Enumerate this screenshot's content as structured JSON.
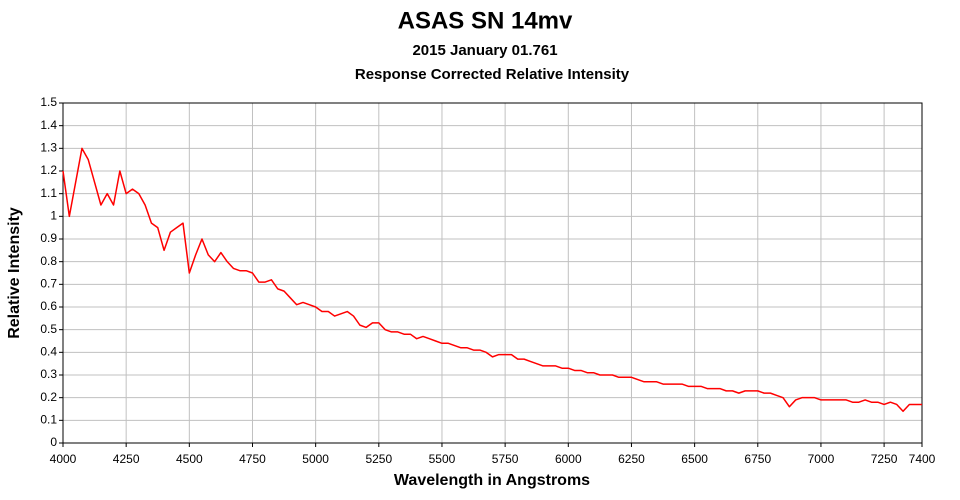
{
  "chart_data": {
    "type": "line",
    "title": "ASAS SN 14mv",
    "subtitles": [
      "2015 January 01.761",
      "Response Corrected Relative Intensity"
    ],
    "x_label": "Wavelength in Angstroms",
    "y_label": "Relative Intensity",
    "x": [
      4000,
      4025,
      4050,
      4075,
      4100,
      4125,
      4150,
      4175,
      4200,
      4225,
      4250,
      4275,
      4300,
      4325,
      4350,
      4375,
      4400,
      4425,
      4450,
      4475,
      4500,
      4525,
      4550,
      4575,
      4600,
      4625,
      4650,
      4675,
      4700,
      4725,
      4750,
      4775,
      4800,
      4825,
      4850,
      4875,
      4900,
      4925,
      4950,
      4975,
      5000,
      5025,
      5050,
      5075,
      5100,
      5125,
      5150,
      5175,
      5200,
      5225,
      5250,
      5275,
      5300,
      5325,
      5350,
      5375,
      5400,
      5425,
      5450,
      5475,
      5500,
      5525,
      5550,
      5575,
      5600,
      5625,
      5650,
      5675,
      5700,
      5725,
      5750,
      5775,
      5800,
      5825,
      5850,
      5875,
      5900,
      5925,
      5950,
      5975,
      6000,
      6025,
      6050,
      6075,
      6100,
      6125,
      6150,
      6175,
      6200,
      6225,
      6250,
      6275,
      6300,
      6325,
      6350,
      6375,
      6400,
      6425,
      6450,
      6475,
      6500,
      6525,
      6550,
      6575,
      6600,
      6625,
      6650,
      6675,
      6700,
      6725,
      6750,
      6775,
      6800,
      6825,
      6850,
      6875,
      6900,
      6925,
      6950,
      6975,
      7000,
      7025,
      7050,
      7075,
      7100,
      7125,
      7150,
      7175,
      7200,
      7225,
      7250,
      7275,
      7300,
      7325,
      7350,
      7375,
      7400
    ],
    "series": [
      {
        "name": "ASAS SN 14mv",
        "color": "#ff0000",
        "values": [
          1.2,
          1.0,
          1.15,
          1.3,
          1.25,
          1.15,
          1.05,
          1.1,
          1.05,
          1.2,
          1.1,
          1.12,
          1.1,
          1.05,
          0.97,
          0.95,
          0.85,
          0.93,
          0.95,
          0.97,
          0.75,
          0.83,
          0.9,
          0.83,
          0.8,
          0.84,
          0.8,
          0.77,
          0.76,
          0.76,
          0.75,
          0.71,
          0.71,
          0.72,
          0.68,
          0.67,
          0.64,
          0.61,
          0.62,
          0.61,
          0.6,
          0.58,
          0.58,
          0.56,
          0.57,
          0.58,
          0.56,
          0.52,
          0.51,
          0.53,
          0.53,
          0.5,
          0.49,
          0.49,
          0.48,
          0.48,
          0.46,
          0.47,
          0.46,
          0.45,
          0.44,
          0.44,
          0.43,
          0.42,
          0.42,
          0.41,
          0.41,
          0.4,
          0.38,
          0.39,
          0.39,
          0.39,
          0.37,
          0.37,
          0.36,
          0.35,
          0.34,
          0.34,
          0.34,
          0.33,
          0.33,
          0.32,
          0.32,
          0.31,
          0.31,
          0.3,
          0.3,
          0.3,
          0.29,
          0.29,
          0.29,
          0.28,
          0.27,
          0.27,
          0.27,
          0.26,
          0.26,
          0.26,
          0.26,
          0.25,
          0.25,
          0.25,
          0.24,
          0.24,
          0.24,
          0.23,
          0.23,
          0.22,
          0.23,
          0.23,
          0.23,
          0.22,
          0.22,
          0.21,
          0.2,
          0.16,
          0.19,
          0.2,
          0.2,
          0.2,
          0.19,
          0.19,
          0.19,
          0.19,
          0.19,
          0.18,
          0.18,
          0.19,
          0.18,
          0.18,
          0.17,
          0.18,
          0.17,
          0.14,
          0.17,
          0.17,
          0.17
        ]
      }
    ],
    "xlim": [
      4000,
      7400
    ],
    "xticks": [
      4000,
      4250,
      4500,
      4750,
      5000,
      5250,
      5500,
      5750,
      6000,
      6250,
      6500,
      6750,
      7000,
      7250,
      7400
    ],
    "ylim": [
      0,
      1.5
    ],
    "yticks": [
      0,
      0.1,
      0.2,
      0.3,
      0.4,
      0.5,
      0.6,
      0.7,
      0.8,
      0.9,
      1,
      1.1,
      1.2,
      1.3,
      1.4,
      1.5
    ],
    "grid": true
  }
}
